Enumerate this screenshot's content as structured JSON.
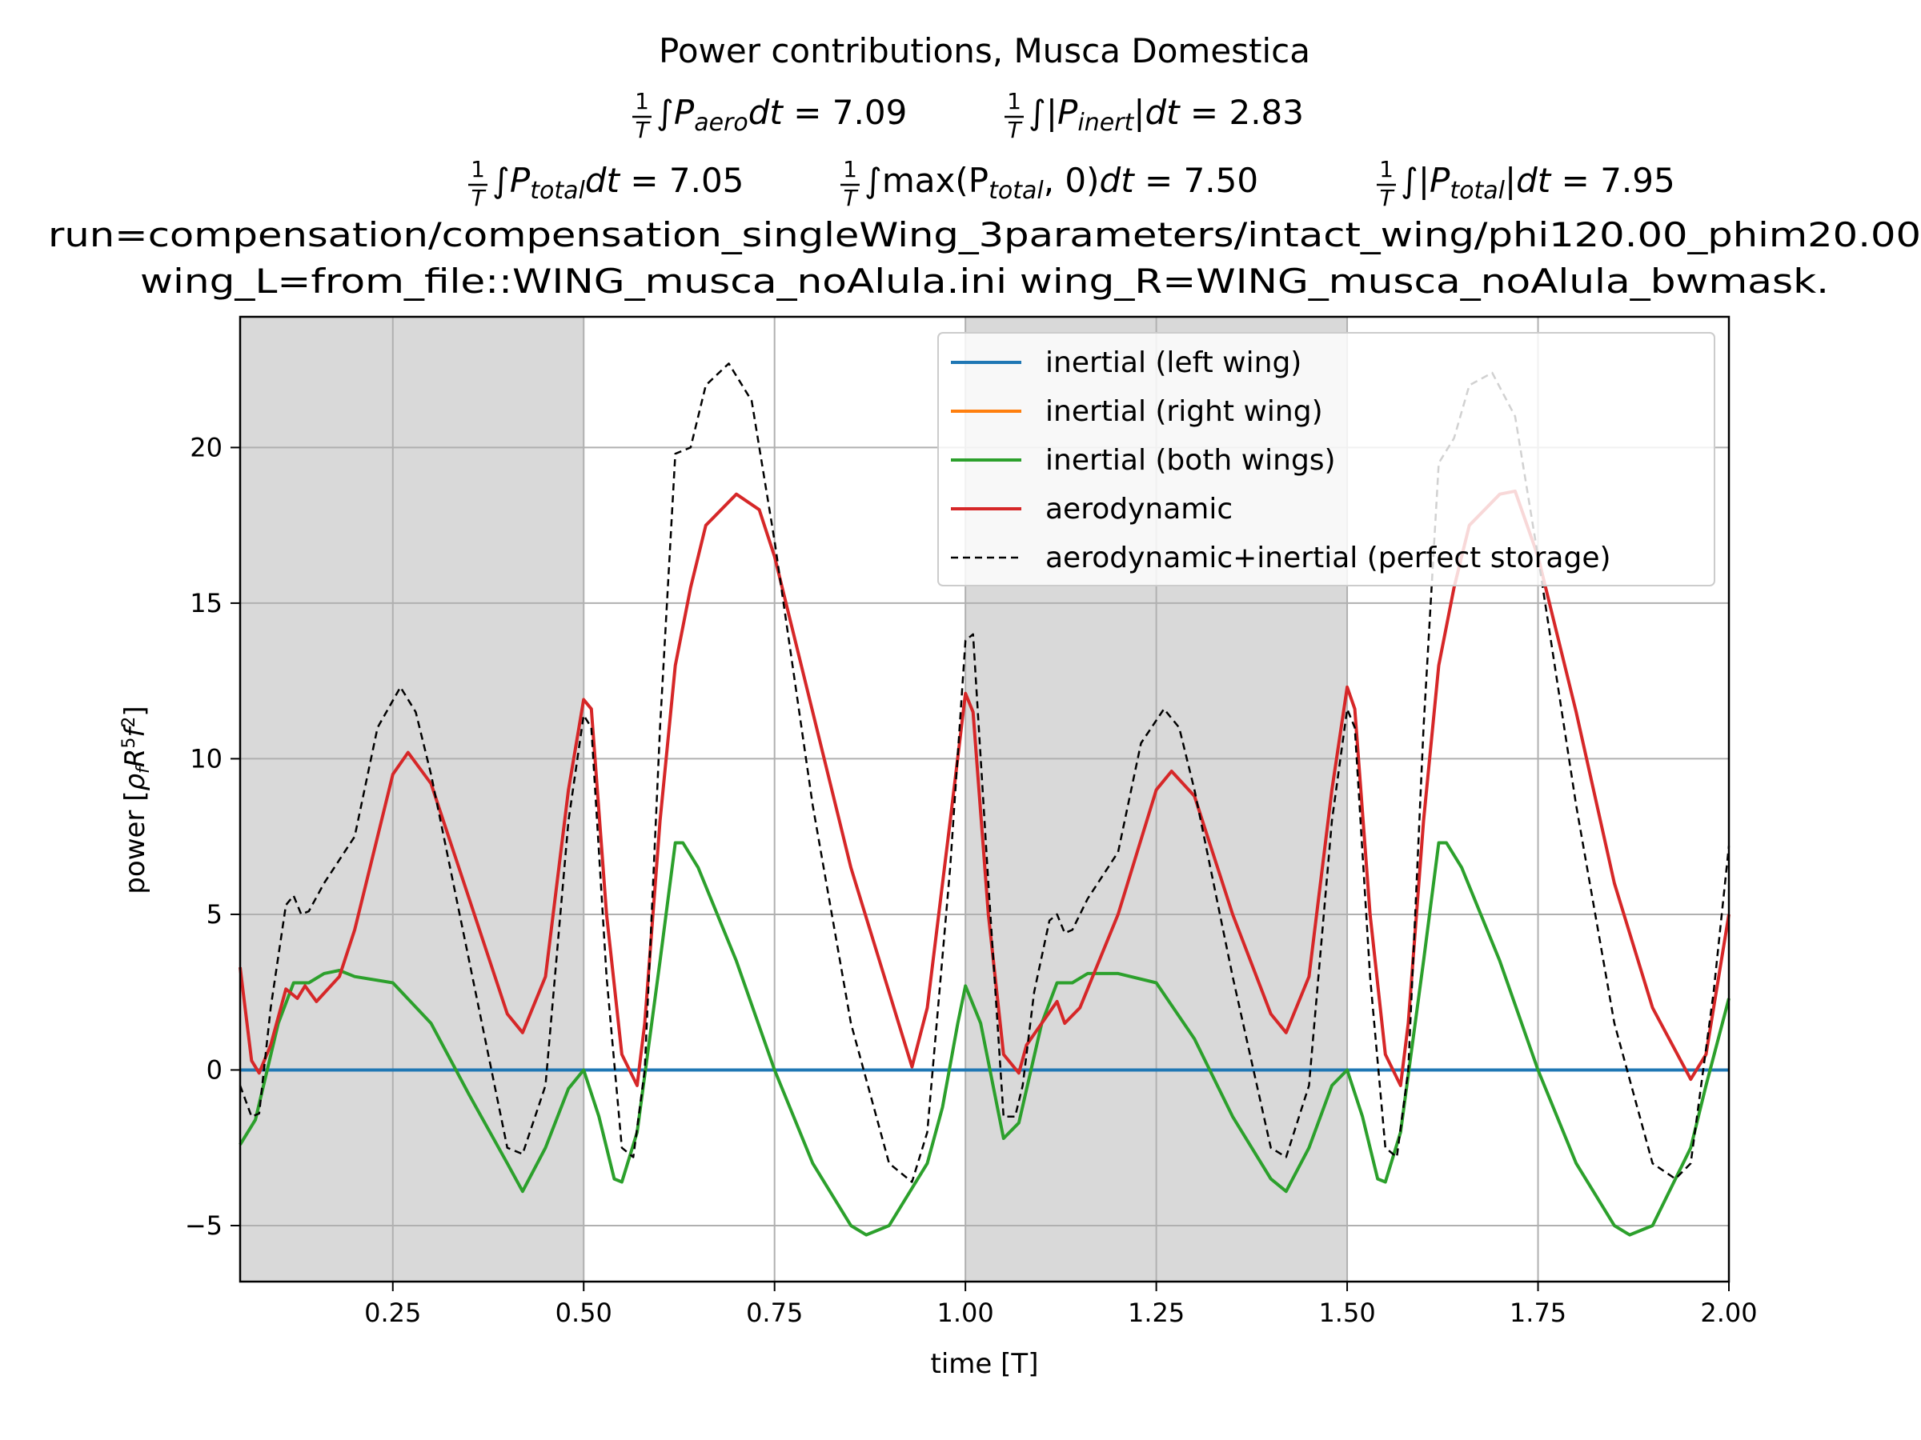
{
  "chart_data": {
    "type": "line",
    "title": {
      "line1": "Power contributions, Musca Domestica",
      "aero_label": "P",
      "aero_sub": "aero",
      "aero_value": "7.09",
      "inert_label": "P",
      "inert_sub": "inert",
      "inert_value": "2.83",
      "total_label": "P",
      "total_sub": "total",
      "total_value": "7.05",
      "total_pos_label": "max(P",
      "total_pos_sub": "total",
      "total_pos_value": "7.50",
      "total_abs_label": "P",
      "total_abs_sub": "total",
      "total_abs_value": "7.95",
      "frac_num": "1",
      "frac_den": "T",
      "dt": "dt",
      "line4": "run=compensation/compensation_singleWing_3parameters/intact_wing/phi120.00_phim20.00",
      "line5": "wing_L=from_file::WING_musca_noAlula.ini wing_R=WING_musca_noAlula_bwmask."
    },
    "xlabel": "time [T]",
    "ylabel": "power [",
    "ylabel_tex": "ρ_f R^5 f^2",
    "xlim": [
      0.05,
      2.0
    ],
    "ylim": [
      -6.8,
      24.2
    ],
    "xticks": [
      "0.25",
      "0.50",
      "0.75",
      "1.00",
      "1.25",
      "1.50",
      "1.75",
      "2.00"
    ],
    "yticks": [
      "−5",
      "0",
      "5",
      "10",
      "15",
      "20"
    ],
    "grid": true,
    "legend_position": "top-right",
    "downstroke_intervals": [
      [
        0.05,
        0.5
      ],
      [
        1.0,
        1.5
      ]
    ],
    "colors": {
      "inertial_left": "#1f77b4",
      "inertial_right": "#ff7f0e",
      "inertial_both": "#2ca02c",
      "aerodynamic": "#d62728",
      "total": "#000000",
      "shade": "#d9d9d9",
      "grid": "#b0b0b0"
    },
    "series": [
      {
        "name": "inertial (left wing)",
        "x": [
          0.05,
          2.0
        ],
        "y": [
          0,
          0
        ]
      },
      {
        "name": "inertial (right wing)",
        "x": [
          0.05,
          2.0
        ],
        "y": [
          0,
          0
        ]
      },
      {
        "name": "inertial (both wings)",
        "x": [
          0.05,
          0.07,
          0.1,
          0.12,
          0.14,
          0.16,
          0.18,
          0.2,
          0.25,
          0.3,
          0.35,
          0.4,
          0.42,
          0.45,
          0.48,
          0.5,
          0.52,
          0.54,
          0.55,
          0.57,
          0.6,
          0.62,
          0.63,
          0.65,
          0.7,
          0.75,
          0.8,
          0.85,
          0.87,
          0.9,
          0.95,
          0.97,
          0.99,
          1.0,
          1.02,
          1.05,
          1.07,
          1.1,
          1.12,
          1.14,
          1.16,
          1.2,
          1.25,
          1.3,
          1.35,
          1.4,
          1.42,
          1.45,
          1.48,
          1.5,
          1.52,
          1.54,
          1.55,
          1.57,
          1.6,
          1.62,
          1.63,
          1.65,
          1.7,
          1.75,
          1.8,
          1.85,
          1.87,
          1.9,
          1.95,
          1.97,
          2.0
        ],
        "y": [
          -2.4,
          -1.6,
          1.5,
          2.8,
          2.8,
          3.1,
          3.2,
          3.0,
          2.8,
          1.5,
          -0.8,
          -3.0,
          -3.9,
          -2.5,
          -0.6,
          0.0,
          -1.5,
          -3.5,
          -3.6,
          -2.0,
          3.5,
          7.3,
          7.3,
          6.5,
          3.5,
          0.0,
          -3.0,
          -5.0,
          -5.3,
          -5.0,
          -3.0,
          -1.2,
          1.5,
          2.7,
          1.5,
          -2.2,
          -1.7,
          1.5,
          2.8,
          2.8,
          3.1,
          3.1,
          2.8,
          1.0,
          -1.5,
          -3.5,
          -3.9,
          -2.5,
          -0.5,
          0.0,
          -1.5,
          -3.5,
          -3.6,
          -2.0,
          3.5,
          7.3,
          7.3,
          6.5,
          3.5,
          0.0,
          -3.0,
          -5.0,
          -5.3,
          -5.0,
          -2.5,
          -0.5,
          2.3
        ]
      },
      {
        "name": "aerodynamic",
        "x": [
          0.05,
          0.065,
          0.075,
          0.09,
          0.11,
          0.125,
          0.135,
          0.15,
          0.18,
          0.2,
          0.22,
          0.25,
          0.27,
          0.3,
          0.35,
          0.4,
          0.42,
          0.45,
          0.48,
          0.5,
          0.51,
          0.53,
          0.55,
          0.57,
          0.58,
          0.6,
          0.62,
          0.64,
          0.66,
          0.7,
          0.73,
          0.75,
          0.8,
          0.85,
          0.9,
          0.93,
          0.95,
          0.98,
          1.0,
          1.01,
          1.03,
          1.05,
          1.07,
          1.08,
          1.1,
          1.12,
          1.13,
          1.15,
          1.2,
          1.25,
          1.27,
          1.3,
          1.35,
          1.4,
          1.42,
          1.45,
          1.48,
          1.5,
          1.51,
          1.53,
          1.55,
          1.57,
          1.58,
          1.6,
          1.62,
          1.64,
          1.66,
          1.7,
          1.72,
          1.75,
          1.8,
          1.85,
          1.9,
          1.95,
          1.97,
          2.0
        ],
        "y": [
          3.3,
          0.3,
          -0.1,
          0.8,
          2.6,
          2.3,
          2.7,
          2.2,
          3.0,
          4.5,
          6.5,
          9.5,
          10.2,
          9.2,
          5.5,
          1.8,
          1.2,
          3.0,
          9.0,
          11.9,
          11.6,
          5.0,
          0.5,
          -0.5,
          1.5,
          8.0,
          13.0,
          15.5,
          17.5,
          18.5,
          18.0,
          16.5,
          11.5,
          6.5,
          2.5,
          0.1,
          2.0,
          8.0,
          12.1,
          11.5,
          5.0,
          0.5,
          -0.1,
          0.8,
          1.5,
          2.2,
          1.5,
          2.0,
          5.0,
          9.0,
          9.6,
          8.8,
          5.0,
          1.8,
          1.2,
          3.0,
          9.0,
          12.3,
          11.6,
          5.0,
          0.5,
          -0.5,
          1.5,
          8.0,
          13.0,
          15.5,
          17.5,
          18.5,
          18.6,
          16.5,
          11.5,
          6.0,
          2.0,
          -0.3,
          0.5,
          5.0
        ]
      },
      {
        "name": "aerodynamic+inertial (perfect storage)",
        "x": [
          0.05,
          0.065,
          0.075,
          0.09,
          0.11,
          0.12,
          0.13,
          0.14,
          0.16,
          0.2,
          0.23,
          0.26,
          0.28,
          0.3,
          0.35,
          0.4,
          0.42,
          0.45,
          0.48,
          0.5,
          0.51,
          0.53,
          0.55,
          0.565,
          0.58,
          0.6,
          0.62,
          0.64,
          0.66,
          0.69,
          0.72,
          0.75,
          0.8,
          0.85,
          0.9,
          0.93,
          0.95,
          0.98,
          1.0,
          1.01,
          1.03,
          1.05,
          1.065,
          1.075,
          1.09,
          1.11,
          1.12,
          1.13,
          1.14,
          1.16,
          1.2,
          1.23,
          1.26,
          1.28,
          1.3,
          1.35,
          1.4,
          1.42,
          1.45,
          1.48,
          1.5,
          1.51,
          1.53,
          1.55,
          1.565,
          1.58,
          1.6,
          1.62,
          1.64,
          1.66,
          1.69,
          1.72,
          1.75,
          1.8,
          1.85,
          1.9,
          1.93,
          1.95,
          1.98,
          2.0
        ],
        "y": [
          -0.5,
          -1.5,
          -1.4,
          2.0,
          5.3,
          5.6,
          5.0,
          5.1,
          6.0,
          7.5,
          11.0,
          12.3,
          11.5,
          9.5,
          3.5,
          -2.5,
          -2.7,
          -0.5,
          8.0,
          11.4,
          11.0,
          3.0,
          -2.5,
          -2.8,
          0.0,
          11.0,
          19.8,
          20.0,
          22.0,
          22.7,
          21.5,
          17.0,
          8.5,
          1.5,
          -3.0,
          -3.6,
          -2.0,
          6.5,
          13.8,
          14.0,
          6.0,
          -1.5,
          -1.5,
          -0.5,
          2.5,
          4.8,
          5.0,
          4.4,
          4.5,
          5.5,
          7.0,
          10.5,
          11.6,
          11.0,
          9.0,
          3.0,
          -2.5,
          -2.8,
          -0.5,
          8.0,
          11.6,
          11.0,
          3.0,
          -2.5,
          -2.8,
          0.0,
          11.0,
          19.5,
          20.3,
          22.0,
          22.4,
          21.0,
          16.5,
          8.5,
          1.5,
          -3.0,
          -3.5,
          -3.0,
          2.5,
          7.2
        ]
      }
    ]
  }
}
